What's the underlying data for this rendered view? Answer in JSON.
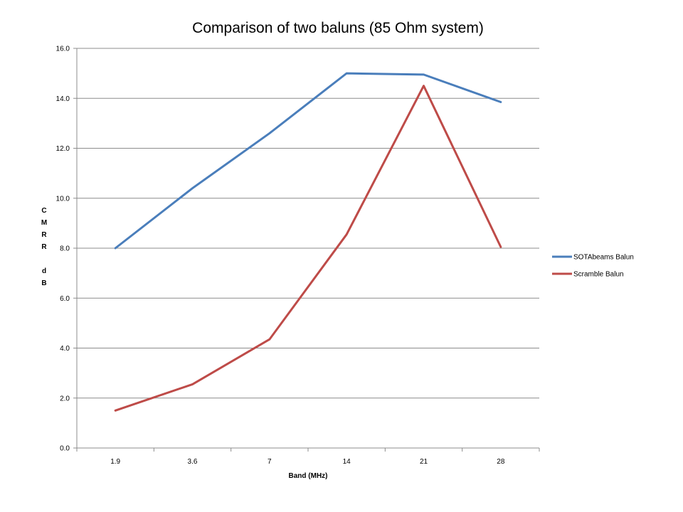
{
  "chart_data": {
    "type": "line",
    "title": "Comparison of two baluns (85 Ohm system)",
    "xlabel": "Band (MHz)",
    "ylabel": "CMRR dB",
    "categories": [
      "1.9",
      "3.6",
      "7",
      "14",
      "21",
      "28"
    ],
    "ylim": [
      0,
      16
    ],
    "ytick_step": 2,
    "ytick_labels": [
      "0.0",
      "2.0",
      "4.0",
      "6.0",
      "8.0",
      "10.0",
      "12.0",
      "14.0",
      "16.0"
    ],
    "grid": true,
    "legend_position": "right",
    "series": [
      {
        "name": "SOTAbeams Balun",
        "color": "#4a7ebb",
        "values": [
          8.0,
          10.4,
          12.6,
          15.0,
          14.95,
          13.85
        ]
      },
      {
        "name": "Scramble Balun",
        "color": "#be4b48",
        "values": [
          1.5,
          2.55,
          4.35,
          8.55,
          14.5,
          8.05
        ]
      }
    ]
  }
}
